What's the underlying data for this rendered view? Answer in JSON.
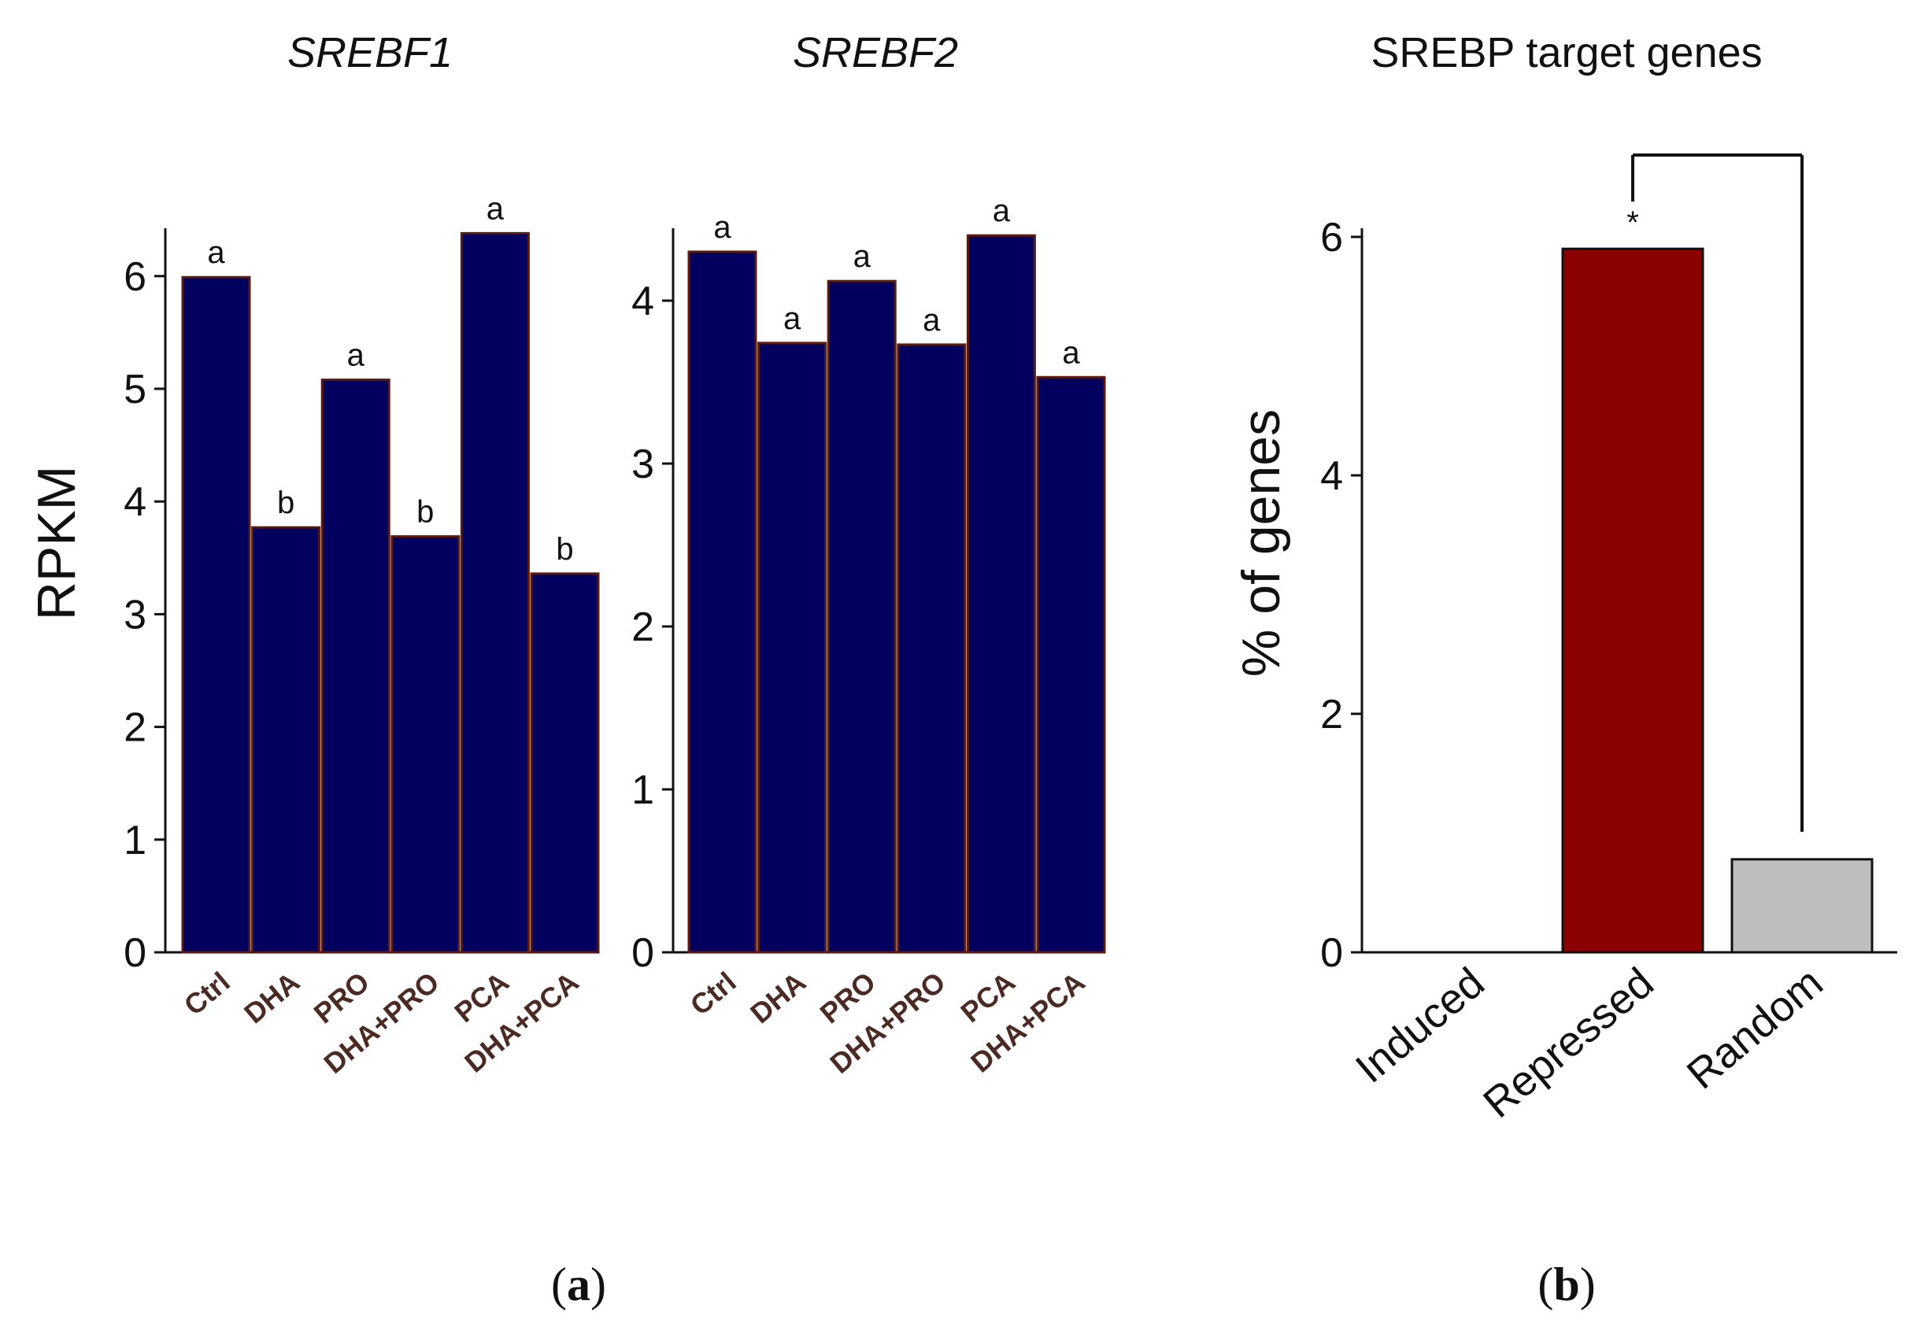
{
  "chart_data": [
    {
      "type": "bar",
      "title": "SREBF1",
      "ylabel": "RPKM",
      "xlabel": "",
      "ylim": [
        0,
        6.4
      ],
      "yticks": [
        0,
        1,
        2,
        3,
        4,
        5,
        6
      ],
      "categories": [
        "Ctrl",
        "DHA",
        "PRO",
        "DHA+PRO",
        "PCA",
        "DHA+PCA"
      ],
      "values": [
        5.99,
        3.77,
        5.08,
        3.69,
        6.38,
        3.36
      ],
      "significance": [
        "a",
        "b",
        "a",
        "b",
        "a",
        "b"
      ],
      "bar_color": "#02005e",
      "bar_edge_color": "#5a1a10",
      "label_color": "#4a2a22",
      "grid": false
    },
    {
      "type": "bar",
      "title": "SREBF2",
      "ylabel": "",
      "xlabel": "",
      "ylim": [
        0,
        4.4
      ],
      "yticks": [
        0,
        1,
        2,
        3,
        4
      ],
      "categories": [
        "Ctrl",
        "DHA",
        "PRO",
        "DHA+PRO",
        "PCA",
        "DHA+PCA"
      ],
      "values": [
        4.3,
        3.74,
        4.12,
        3.73,
        4.4,
        3.53
      ],
      "significance": [
        "a",
        "a",
        "a",
        "a",
        "a",
        "a"
      ],
      "bar_color": "#02005e",
      "bar_edge_color": "#5a1a10",
      "label_color": "#4a2a22",
      "grid": false
    },
    {
      "type": "bar",
      "title": "SREBP target genes",
      "ylabel": "% of genes",
      "xlabel": "",
      "ylim": [
        0,
        6
      ],
      "yticks": [
        0,
        2,
        4,
        6
      ],
      "categories": [
        "Induced",
        "Repressed",
        "Random"
      ],
      "values": [
        0,
        5.9,
        0.78
      ],
      "colors": [
        "#ffffff",
        "#8b0000",
        "#bebebe"
      ],
      "significance_marker": "*",
      "significance_compared": [
        "Repressed",
        "Random"
      ],
      "grid": false
    }
  ],
  "panel_labels": {
    "a": {
      "open": "(",
      "letter": "a",
      "close": ")"
    },
    "b": {
      "open": "(",
      "letter": "b",
      "close": ")"
    }
  }
}
